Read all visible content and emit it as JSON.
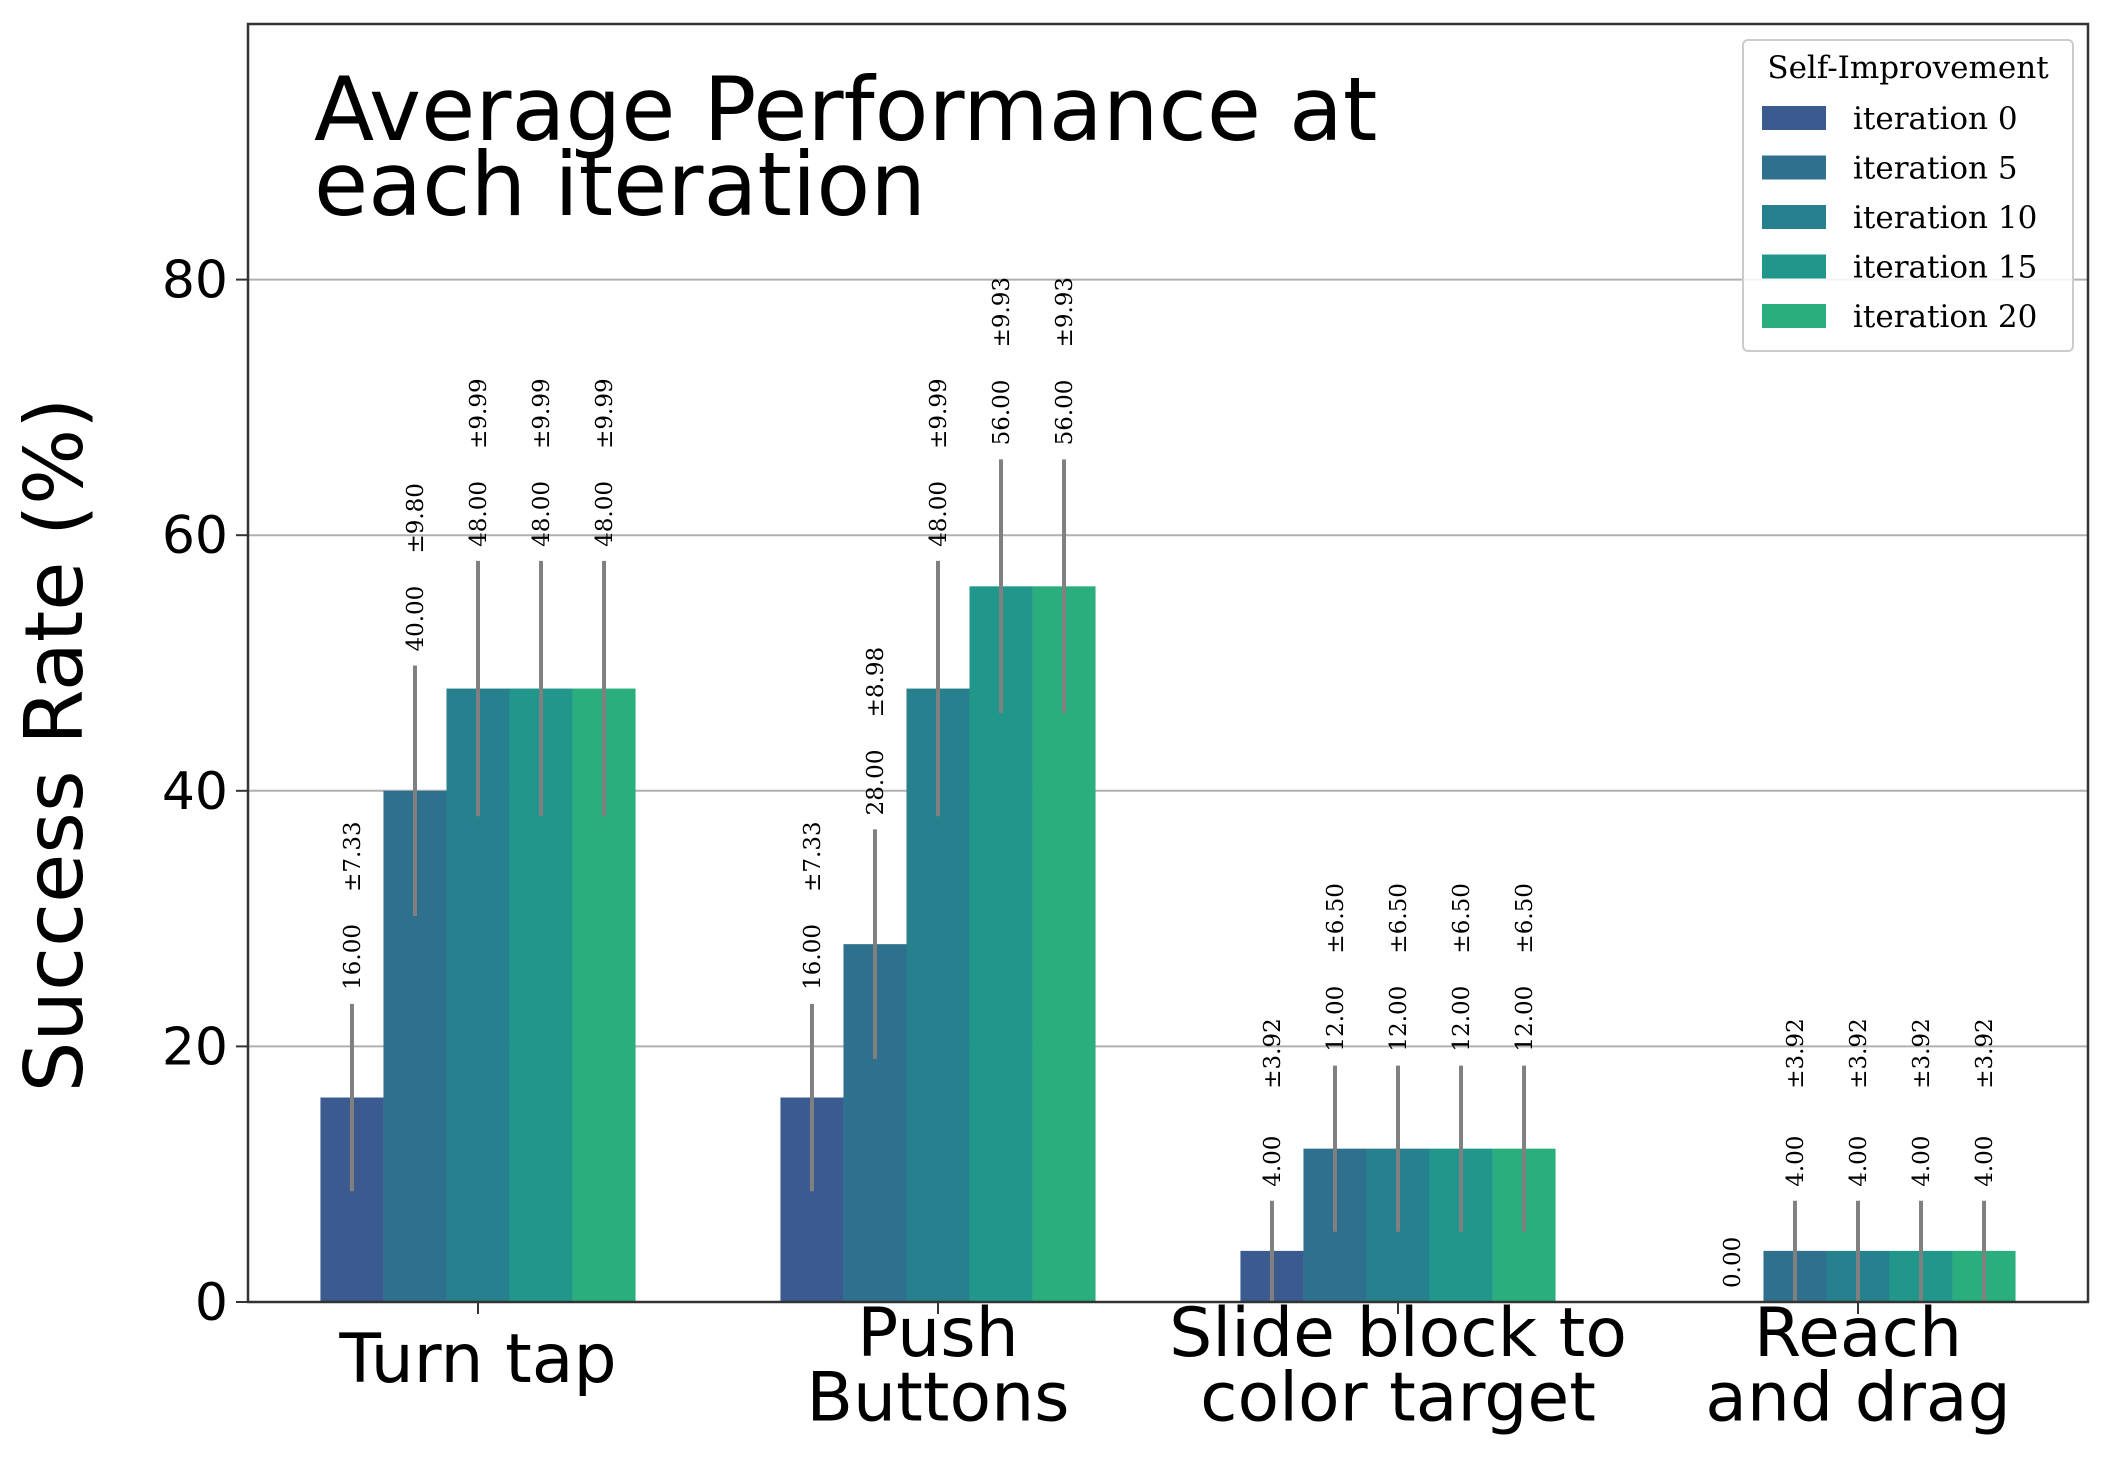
{
  "chart_data": {
    "type": "bar",
    "title": "Average Performance at\neach iteration",
    "ylabel": "Success Rate (%)",
    "categories": [
      "Turn tap",
      "Push\nButtons",
      "Slide block to\ncolor target",
      "Reach\nand drag"
    ],
    "series": [
      {
        "name": "iteration 0",
        "color": "#3b5a8f",
        "values": [
          16,
          16,
          4,
          0
        ],
        "value_labels": [
          "16.00",
          "16.00",
          "4.00",
          "0.00"
        ],
        "errors": [
          7.33,
          7.33,
          3.92,
          null
        ],
        "error_labels": [
          "±7.33",
          "±7.33",
          "±3.92",
          null
        ]
      },
      {
        "name": "iteration 5",
        "color": "#2e708d",
        "values": [
          40,
          28,
          12,
          4
        ],
        "value_labels": [
          "40.00",
          "28.00",
          "12.00",
          "4.00"
        ],
        "errors": [
          9.8,
          8.98,
          6.5,
          3.92
        ],
        "error_labels": [
          "±9.80",
          "±8.98",
          "±6.50",
          "±3.92"
        ]
      },
      {
        "name": "iteration 10",
        "color": "#27808d",
        "values": [
          48,
          48,
          12,
          4
        ],
        "value_labels": [
          "48.00",
          "48.00",
          "12.00",
          "4.00"
        ],
        "errors": [
          9.99,
          9.99,
          6.5,
          3.92
        ],
        "error_labels": [
          "±9.99",
          "±9.99",
          "±6.50",
          "±3.92"
        ]
      },
      {
        "name": "iteration 15",
        "color": "#21968b",
        "values": [
          48,
          56,
          12,
          4
        ],
        "value_labels": [
          "48.00",
          "56.00",
          "12.00",
          "4.00"
        ],
        "errors": [
          9.99,
          9.93,
          6.5,
          3.92
        ],
        "error_labels": [
          "±9.99",
          "±9.93",
          "±6.50",
          "±3.92"
        ]
      },
      {
        "name": "iteration 20",
        "color": "#2aae7e",
        "values": [
          48,
          56,
          12,
          4
        ],
        "value_labels": [
          "48.00",
          "56.00",
          "12.00",
          "4.00"
        ],
        "errors": [
          9.99,
          9.93,
          6.5,
          3.92
        ],
        "error_labels": [
          "±9.99",
          "±9.93",
          "±6.50",
          "±3.92"
        ]
      }
    ],
    "ylim": [
      0,
      100
    ],
    "yticks": [
      0,
      20,
      40,
      60,
      80
    ],
    "grid": true,
    "legend_title": "Self-Improvement",
    "legend_position": "upper right"
  }
}
